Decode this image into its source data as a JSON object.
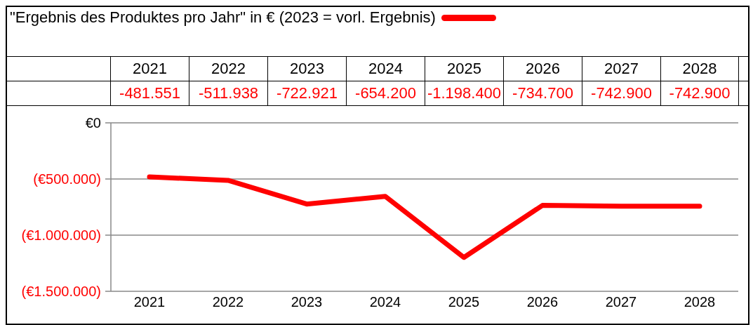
{
  "chart_data": {
    "type": "line",
    "title": "\"Ergebnis des Produktes pro Jahr\" in € (2023 = vorl. Ergebnis)",
    "categories": [
      "2021",
      "2022",
      "2023",
      "2024",
      "2025",
      "2026",
      "2027",
      "2028"
    ],
    "series": [
      {
        "color": "#ff0000",
        "values": [
          -481551,
          -511938,
          -722921,
          -654200,
          -1198400,
          -734700,
          -742900,
          -742900
        ],
        "value_labels": [
          "-481.551",
          "-511.938",
          "-722.921",
          "-654.200",
          "-1.198.400",
          "-734.700",
          "-742.900",
          "-742.900"
        ]
      }
    ],
    "ylim": [
      -1500000,
      0
    ],
    "yticks": [
      {
        "value": 0,
        "label": "€0"
      },
      {
        "value": -500000,
        "label": "(€500.000)"
      },
      {
        "value": -1000000,
        "label": "(€1.000.000)"
      },
      {
        "value": -1500000,
        "label": "(€1.500.000)"
      }
    ],
    "grid": "y",
    "marker": "none",
    "line_style": "solid"
  }
}
